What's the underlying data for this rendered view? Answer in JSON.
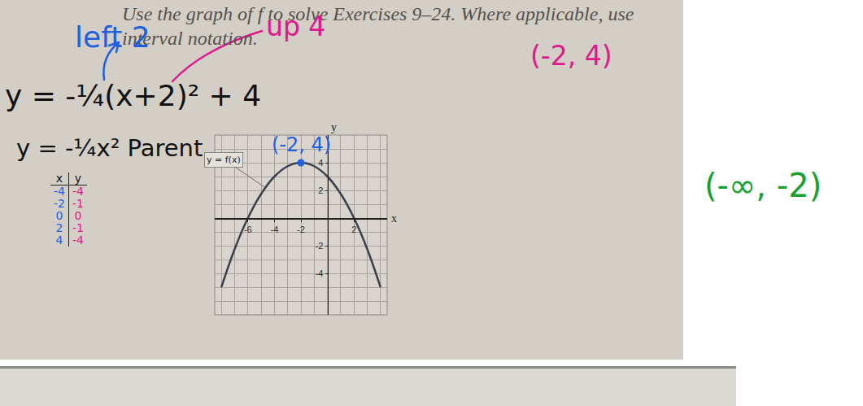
{
  "instructions": [
    "Use the graph of f to solve Exercises 9–24. Where applicable, use",
    "interval notation."
  ],
  "chart_data": {
    "type": "line",
    "label": "y = f(x)",
    "x": [
      -8,
      -7,
      -6,
      -5,
      -4,
      -3,
      -2,
      -1,
      0,
      1,
      2,
      3,
      4
    ],
    "values": [
      -5,
      -2.25,
      0,
      1.75,
      3,
      3.75,
      4,
      3.75,
      3,
      1.75,
      0,
      -2.25,
      -5
    ],
    "color": "#3a404d",
    "xlim": [
      -8.5,
      4.5
    ],
    "ylim": [
      -7,
      6
    ],
    "xticks": [
      -6,
      -4,
      -2,
      2
    ],
    "yticks": [
      -4,
      -2,
      2,
      4
    ],
    "xlabel": "x",
    "ylabel": "y",
    "grid": true,
    "point": {
      "x": -2,
      "y": 4,
      "label": "(-2, 4)",
      "color": "#1f5fe0"
    }
  },
  "notes": {
    "vertex_form": {
      "text": "y = -¼(x+2)² + 4",
      "color": "#111111"
    },
    "parent": {
      "text": "y = -¼x² Parent",
      "color": "#111111"
    },
    "left": {
      "text": "left 2",
      "color": "#1f5fe0"
    },
    "up": {
      "text": "up 4",
      "color": "#e0188c"
    },
    "vertex_top": {
      "text": "(-2, 4)",
      "color": "#e0188c"
    },
    "interval": {
      "text": "(-∞, -2)",
      "color": "#18a030"
    }
  },
  "table": {
    "header": [
      "x",
      "y"
    ],
    "x": [
      -4,
      -2,
      0,
      2,
      4
    ],
    "y": [
      -4,
      -1,
      0,
      -1,
      -4
    ],
    "colors": [
      "#1f5fe0",
      "#e0188c"
    ]
  }
}
